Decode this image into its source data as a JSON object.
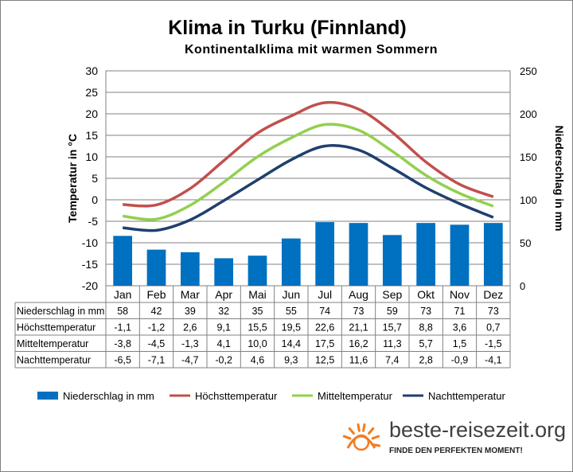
{
  "title": "Klima in Turku (Finnland)",
  "subtitle": "Kontinentalklima  mit  warmen Sommern",
  "chart_data": {
    "type": "bar+line",
    "categories": [
      "Jan",
      "Feb",
      "Mar",
      "Apr",
      "Mai",
      "Jun",
      "Jul",
      "Aug",
      "Sep",
      "Okt",
      "Nov",
      "Dez"
    ],
    "ylabel_left": "Temperatur in °C",
    "ylabel_right": "Niederschlag in mm",
    "ylim_left": [
      -20,
      30
    ],
    "ylim_right": [
      0,
      250
    ],
    "yticks_left": [
      "30",
      "25",
      "20",
      "15",
      "10",
      "5",
      "0",
      "-5",
      "-10",
      "-15",
      "-20"
    ],
    "yticks_right": [
      "250",
      "200",
      "150",
      "100",
      "50",
      "0"
    ],
    "grid": true,
    "legend_position": "bottom",
    "series": [
      {
        "name": "Niederschlag in mm",
        "kind": "bar",
        "axis": "right",
        "color": "#0070c0",
        "values": [
          58,
          42,
          39,
          32,
          35,
          55,
          74,
          73,
          59,
          73,
          71,
          73
        ],
        "labels": [
          "58",
          "42",
          "39",
          "32",
          "35",
          "55",
          "74",
          "73",
          "59",
          "73",
          "71",
          "73"
        ]
      },
      {
        "name": "Höchsttemperatur",
        "kind": "line",
        "axis": "left",
        "color": "#c0504d",
        "values": [
          -1.1,
          -1.2,
          2.6,
          9.1,
          15.5,
          19.5,
          22.6,
          21.1,
          15.7,
          8.8,
          3.6,
          0.7
        ],
        "labels": [
          "-1,1",
          "-1,2",
          "2,6",
          "9,1",
          "15,5",
          "19,5",
          "22,6",
          "21,1",
          "15,7",
          "8,8",
          "3,6",
          "0,7"
        ]
      },
      {
        "name": "Mitteltemperatur",
        "kind": "line",
        "axis": "left",
        "color": "#92d050",
        "values": [
          -3.8,
          -4.5,
          -1.3,
          4.1,
          10.0,
          14.4,
          17.5,
          16.2,
          11.3,
          5.7,
          1.5,
          -1.5
        ],
        "labels": [
          "-3,8",
          "-4,5",
          "-1,3",
          "4,1",
          "10,0",
          "14,4",
          "17,5",
          "16,2",
          "11,3",
          "5,7",
          "1,5",
          "-1,5"
        ]
      },
      {
        "name": "Nachttemperatur",
        "kind": "line",
        "axis": "left",
        "color": "#1f3f6e",
        "values": [
          -6.5,
          -7.1,
          -4.7,
          -0.2,
          4.6,
          9.3,
          12.5,
          11.6,
          7.4,
          2.8,
          -0.9,
          -4.1
        ],
        "labels": [
          "-6,5",
          "-7,1",
          "-4,7",
          "-0,2",
          "4,6",
          "9,3",
          "12,5",
          "11,6",
          "7,4",
          "2,8",
          "-0,9",
          "-4,1"
        ]
      }
    ]
  },
  "brand": {
    "name": "beste-reisezeit.org",
    "tagline": "FINDE DEN PERFEKTEN MOMENT!",
    "icon": "sun-icon",
    "icon_color": "#f47b20"
  }
}
